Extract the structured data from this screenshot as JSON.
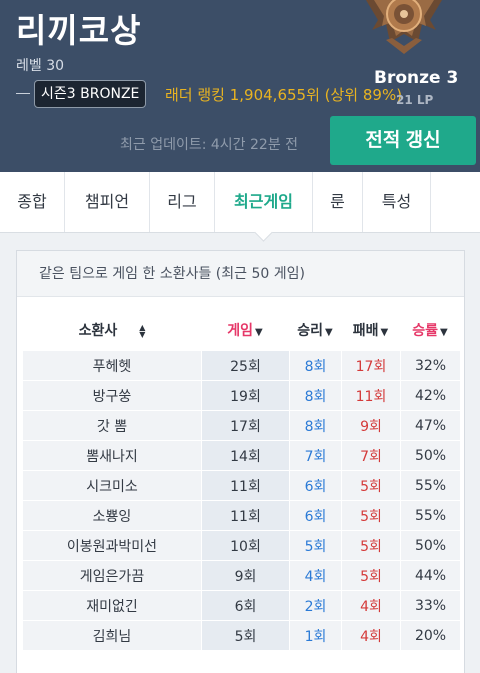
{
  "header": {
    "summoner_name": "리끼코상",
    "level": "레벨 30",
    "season_badge": "시즌3 BRONZE",
    "ladder_rank": "래더 랭킹 1,904,655위 (상위 89%)",
    "tier": "Bronze 3",
    "lp": "21 LP",
    "updated": "최근 업데이트: 4시간 22분 전",
    "refresh_label": "전적 갱신",
    "emblem_icon": "bronze-emblem-icon"
  },
  "tabs": [
    {
      "label": "종합"
    },
    {
      "label": "챔피언"
    },
    {
      "label": "리그"
    },
    {
      "label": "최근게임",
      "active": true
    },
    {
      "label": "룬"
    },
    {
      "label": "특성"
    }
  ],
  "card": {
    "title": "같은 팀으로 게임 한 소환사들 (최근 50 게임)",
    "columns": {
      "summoner": "소환사",
      "games": "게임",
      "wins": "승리",
      "losses": "패배",
      "rate": "승률"
    },
    "rows": [
      {
        "name": "푸헤헷",
        "games": "25회",
        "wins": "8회",
        "losses": "17회",
        "rate": "32%"
      },
      {
        "name": "방구쑹",
        "games": "19회",
        "wins": "8회",
        "losses": "11회",
        "rate": "42%"
      },
      {
        "name": "갓 뽐",
        "games": "17회",
        "wins": "8회",
        "losses": "9회",
        "rate": "47%"
      },
      {
        "name": "뽐새나지",
        "games": "14회",
        "wins": "7회",
        "losses": "7회",
        "rate": "50%"
      },
      {
        "name": "시크미소",
        "games": "11회",
        "wins": "6회",
        "losses": "5회",
        "rate": "55%"
      },
      {
        "name": "소뿅잉",
        "games": "11회",
        "wins": "6회",
        "losses": "5회",
        "rate": "55%"
      },
      {
        "name": "이봉원과박미선",
        "games": "10회",
        "wins": "5회",
        "losses": "5회",
        "rate": "50%"
      },
      {
        "name": "게임은가끔",
        "games": "9회",
        "wins": "4회",
        "losses": "5회",
        "rate": "44%"
      },
      {
        "name": "재미없긴",
        "games": "6회",
        "wins": "2회",
        "losses": "4회",
        "rate": "33%"
      },
      {
        "name": "김희님",
        "games": "5회",
        "wins": "1회",
        "losses": "4회",
        "rate": "20%"
      }
    ]
  },
  "colors": {
    "header_bg": "#3c4e67",
    "accent_green": "#1fa98b",
    "ladder_gold": "#e8b321",
    "win_blue": "#2b7ad6",
    "loss_red": "#d43a3a",
    "sort_pink": "#e63768"
  }
}
